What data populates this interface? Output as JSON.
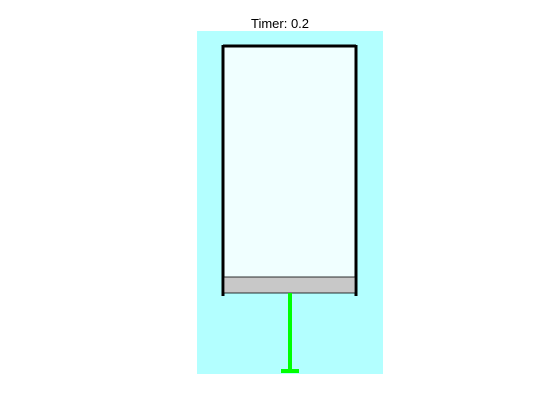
{
  "timer": {
    "label": "Timer: 0.2",
    "value": 0.2
  },
  "colors": {
    "background_panel": "#b3ffff",
    "cylinder_interior": "#f0ffff",
    "cylinder_wall": "#000000",
    "piston": "#c8c8c8",
    "piston_rod": "#00ff00"
  }
}
